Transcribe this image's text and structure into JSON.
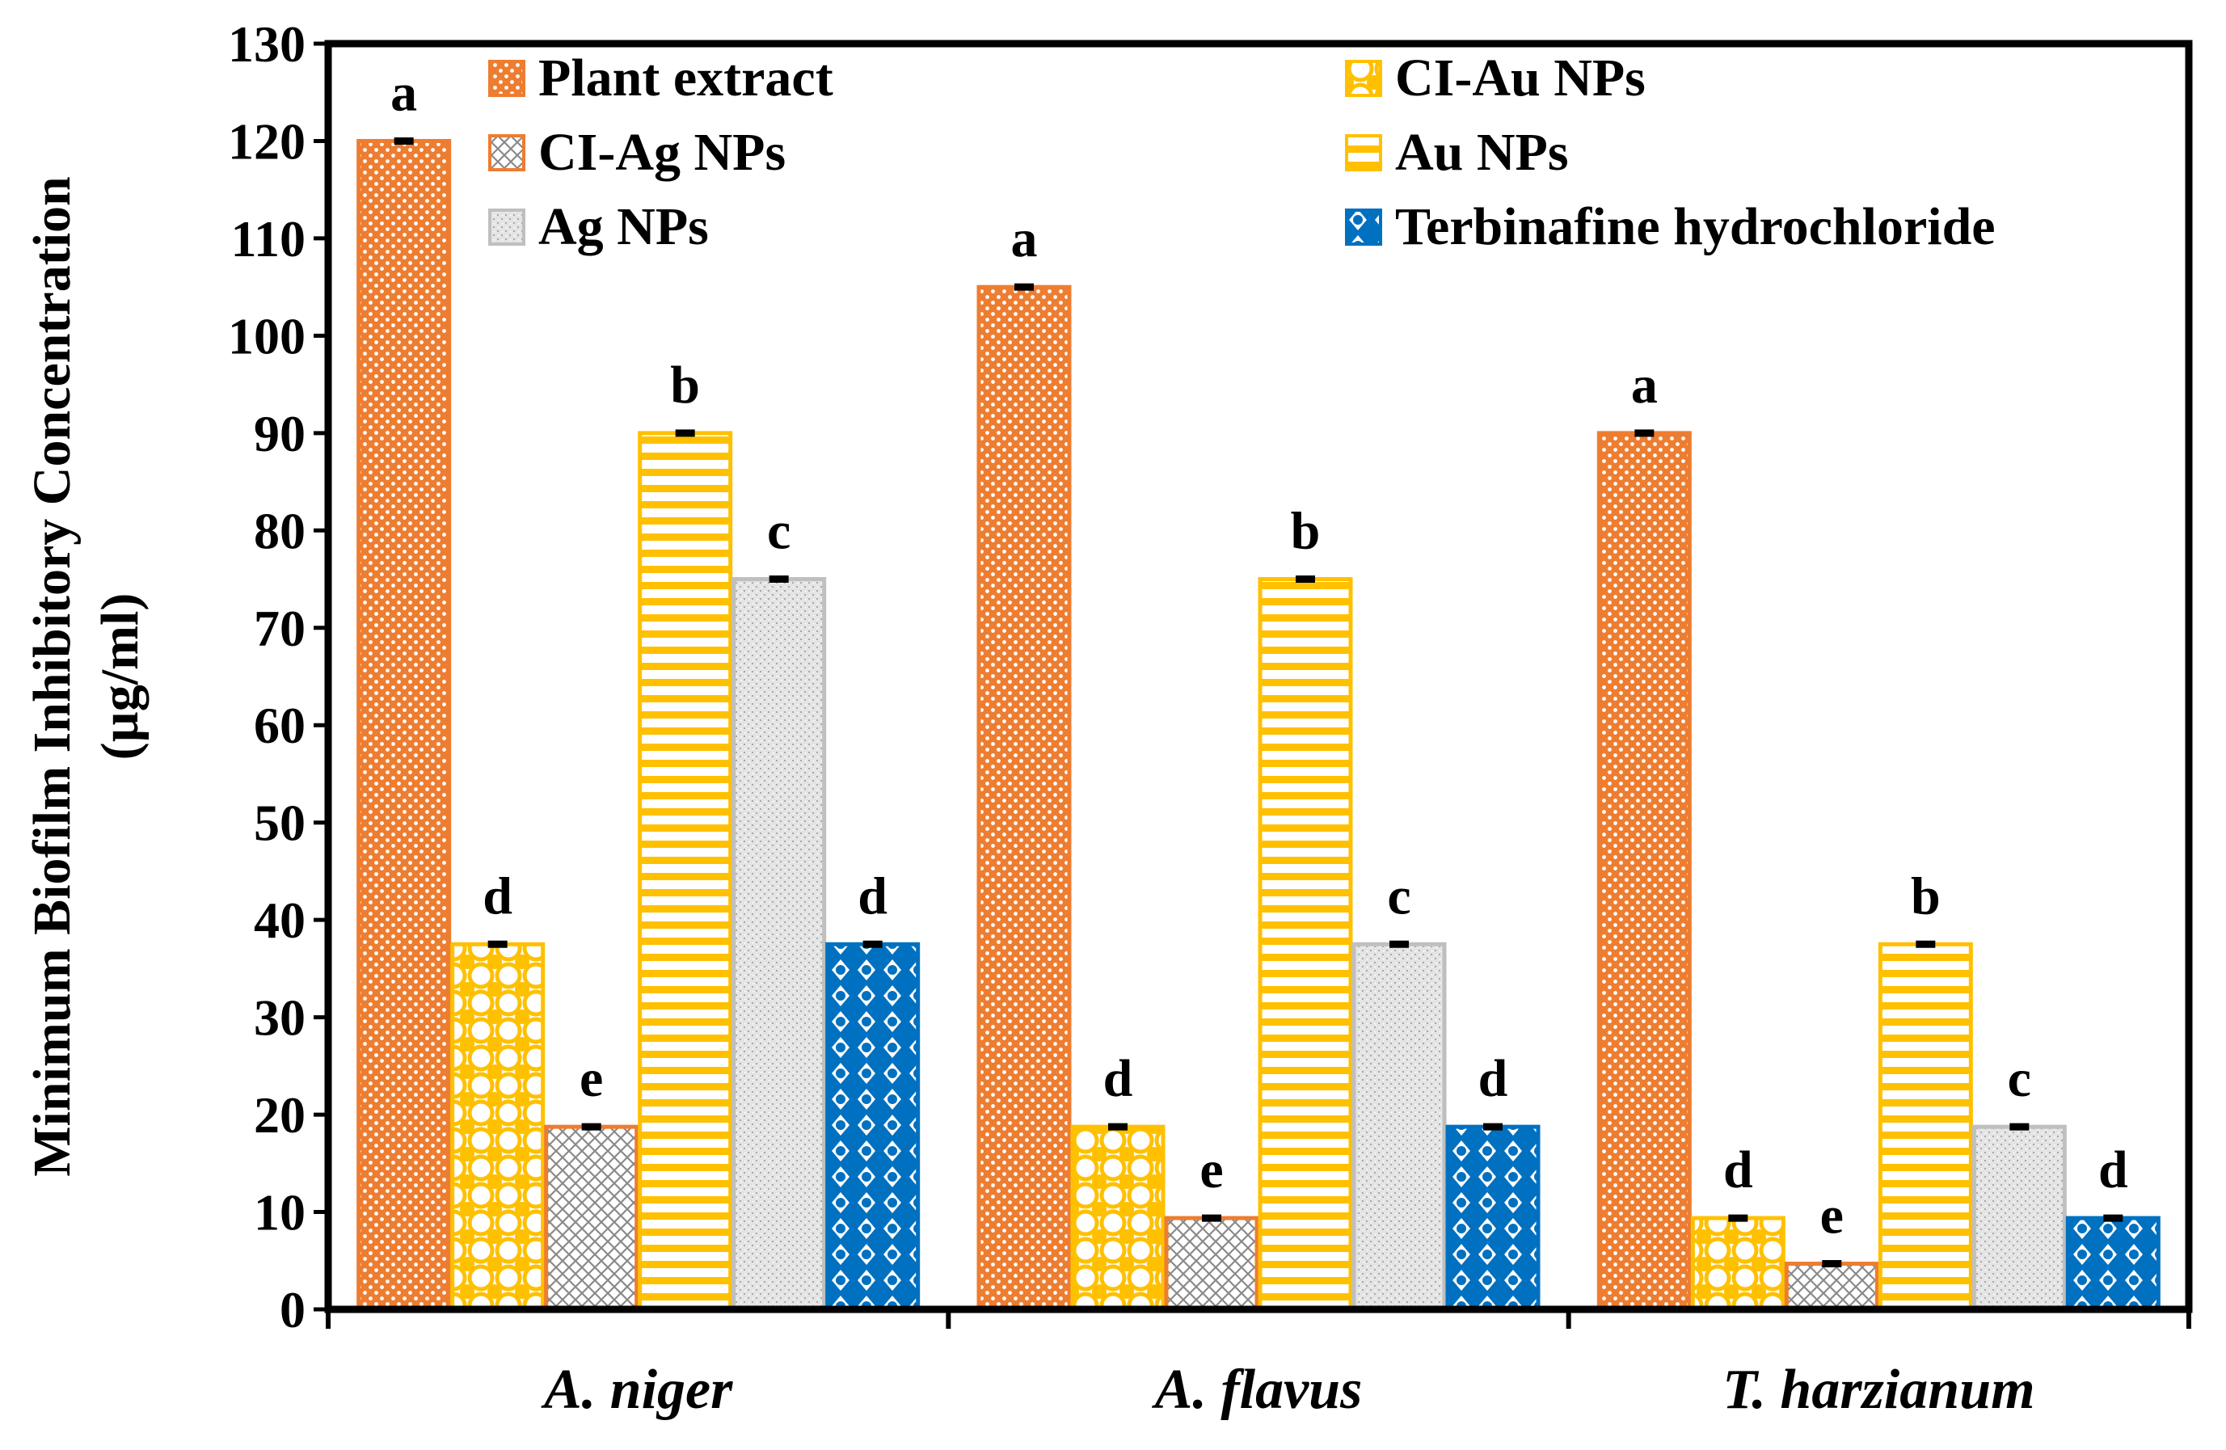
{
  "chart_data": {
    "type": "bar",
    "title": "",
    "xlabel": "",
    "ylabel_line1": "Minimum Biofilm Inhibitory Concentration",
    "ylabel_line2": "(µg/ml)",
    "ylim": [
      0,
      130
    ],
    "yticks": [
      0,
      10,
      20,
      30,
      40,
      50,
      60,
      70,
      80,
      90,
      100,
      110,
      120,
      130
    ],
    "grid": false,
    "legend_position": "top",
    "categories": [
      "A. niger",
      "A. flavus",
      "T. harzianum"
    ],
    "series": [
      {
        "name": "Plant extract",
        "values": [
          120,
          105,
          90
        ],
        "labels": [
          "a",
          "a",
          "a"
        ],
        "color": "#ED7D31",
        "pattern": "dots"
      },
      {
        "name": "CI-Au NPs",
        "values": [
          37.5,
          18.75,
          9.375
        ],
        "labels": [
          "d",
          "d",
          "d"
        ],
        "color": "#FFC000",
        "pattern": "circles"
      },
      {
        "name": "CI-Ag NPs",
        "values": [
          18.75,
          9.375,
          4.69
        ],
        "labels": [
          "e",
          "e",
          "e"
        ],
        "color": "#ED7D31",
        "pattern": "crosshatch"
      },
      {
        "name": "Au NPs",
        "values": [
          90,
          75,
          37.5
        ],
        "labels": [
          "b",
          "b",
          "b"
        ],
        "color": "#FFC000",
        "pattern": "hstripes"
      },
      {
        "name": "Ag NPs",
        "values": [
          75,
          37.5,
          18.75
        ],
        "labels": [
          "c",
          "c",
          "c"
        ],
        "color": "#BFBFBF",
        "pattern": "grain"
      },
      {
        "name": "Terbinafine hydrochloride",
        "values": [
          37.5,
          18.75,
          9.375
        ],
        "labels": [
          "d",
          "d",
          "d"
        ],
        "color": "#0070C0",
        "pattern": "diamonds"
      }
    ]
  }
}
